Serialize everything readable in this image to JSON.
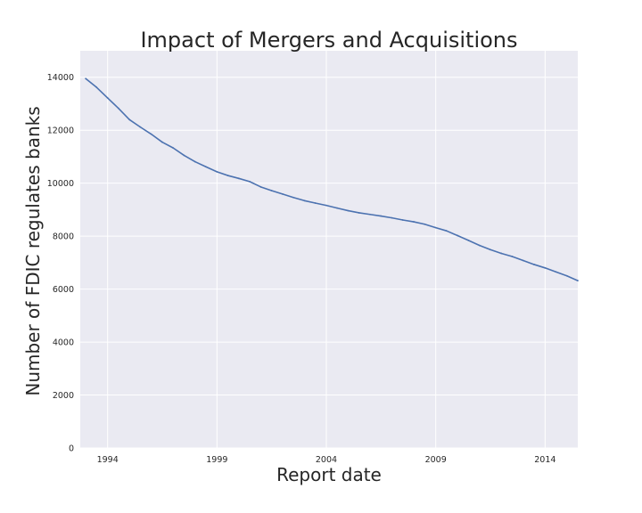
{
  "chart_data": {
    "type": "line",
    "title": "Impact of Mergers and Acquisitions",
    "xlabel": "Report date",
    "ylabel": "Number of FDIC regulates banks",
    "x_axis": {
      "range": [
        "1992-10-01",
        "2015-07-01"
      ],
      "ticks": [
        "1994",
        "1999",
        "2004",
        "2009",
        "2014"
      ]
    },
    "y_axis": {
      "range": [
        0,
        15000
      ],
      "ticks": [
        "0",
        "2000",
        "4000",
        "6000",
        "8000",
        "10000",
        "12000",
        "14000"
      ]
    },
    "grid": true,
    "colors": {
      "background": "#eaeaf2",
      "grid": "#ffffff",
      "line": "#4c72b0"
    },
    "series": [
      {
        "x": [
          "1992-12-31",
          "1993-06-30",
          "1993-12-31",
          "1994-06-30",
          "1994-12-31",
          "1995-06-30",
          "1995-12-31",
          "1996-06-30",
          "1996-12-31",
          "1997-06-30",
          "1997-12-31",
          "1998-06-30",
          "1998-12-31",
          "1999-06-30",
          "1999-12-31",
          "2000-06-30",
          "2000-12-31",
          "2001-06-30",
          "2001-12-31",
          "2002-06-30",
          "2002-12-31",
          "2003-06-30",
          "2003-12-31",
          "2004-06-30",
          "2004-12-31",
          "2005-06-30",
          "2005-12-31",
          "2006-06-30",
          "2006-12-31",
          "2007-06-30",
          "2007-12-31",
          "2008-06-30",
          "2008-12-31",
          "2009-06-30",
          "2009-12-31",
          "2010-06-30",
          "2010-12-31",
          "2011-06-30",
          "2011-12-31",
          "2012-06-30",
          "2012-12-31",
          "2013-06-30",
          "2013-12-31",
          "2014-06-30",
          "2014-12-31",
          "2015-06-30"
        ],
        "values": [
          13950,
          13620,
          13220,
          12830,
          12400,
          12120,
          11850,
          11550,
          11330,
          11050,
          10810,
          10620,
          10430,
          10290,
          10180,
          10060,
          9860,
          9720,
          9590,
          9460,
          9340,
          9250,
          9160,
          9060,
          8960,
          8880,
          8820,
          8760,
          8690,
          8610,
          8540,
          8450,
          8320,
          8200,
          8020,
          7840,
          7650,
          7490,
          7350,
          7230,
          7080,
          6930,
          6800,
          6650,
          6500,
          6320
        ]
      }
    ]
  }
}
